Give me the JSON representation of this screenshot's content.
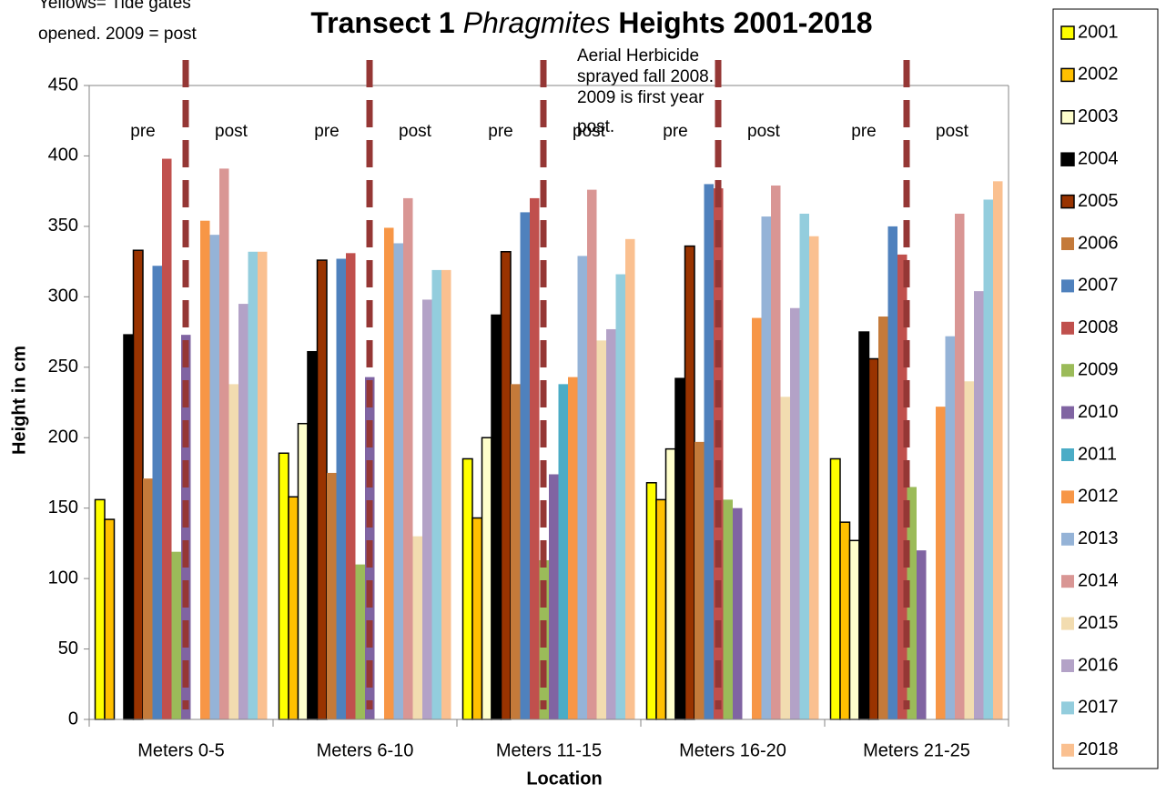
{
  "chart_data": {
    "type": "bar",
    "title": [
      "Transect 1",
      "Phragmites",
      "Heights  2001-2018"
    ],
    "x_label": "Location",
    "y_label": "Height in cm",
    "annotations": [
      [
        "Yellows= Tide gates",
        "opened.  2009 = post"
      ],
      [
        "Aerial Herbicide",
        "sprayed fall 2008.",
        "2009 is first year",
        "post."
      ]
    ],
    "phase_labels": [
      [
        "pre",
        "post"
      ],
      [
        "pre",
        "post"
      ],
      [
        "pre",
        "post"
      ],
      [
        "pre",
        "post"
      ],
      [
        "pre",
        "post"
      ]
    ],
    "categories": [
      "Meters 0-5",
      "Meters  6-10",
      "Meters 11-15",
      "Meters 16-20",
      "Meters 21-25"
    ],
    "ylim": [
      0,
      450
    ],
    "yticks": [
      0,
      50,
      100,
      150,
      200,
      250,
      300,
      350,
      400,
      450
    ],
    "grid": false,
    "legend": "right",
    "series": [
      {
        "name": "2001",
        "color": "#ffff00",
        "edgecolor": "#000000",
        "values": [
          156,
          189,
          185,
          168,
          185
        ]
      },
      {
        "name": "2002",
        "color": "#ffc000",
        "edgecolor": "#000000",
        "values": [
          142,
          158,
          143,
          156,
          140
        ]
      },
      {
        "name": "2003",
        "color": "#ffffcc",
        "edgecolor": "#000000",
        "values": [
          null,
          210,
          200,
          192,
          127
        ]
      },
      {
        "name": "2004",
        "color": "#000000",
        "edgecolor": "#000000",
        "values": [
          273,
          261,
          287,
          242,
          275
        ]
      },
      {
        "name": "2005",
        "color": "#993300",
        "edgecolor": "#000000",
        "values": [
          333,
          326,
          332,
          336,
          256
        ]
      },
      {
        "name": "2006",
        "color": "#c47a3a",
        "values": [
          171,
          175,
          238,
          197,
          286
        ]
      },
      {
        "name": "2007",
        "color": "#4f81bd",
        "values": [
          322,
          327,
          360,
          380,
          350
        ]
      },
      {
        "name": "2008",
        "color": "#c0504d",
        "values": [
          398,
          331,
          370,
          377,
          330
        ]
      },
      {
        "name": "2009",
        "color": "#9bbb59",
        "values": [
          119,
          110,
          113,
          156,
          165
        ]
      },
      {
        "name": "2010",
        "color": "#8064a2",
        "values": [
          273,
          243,
          174,
          150,
          120
        ]
      },
      {
        "name": "2011",
        "color": "#4bacc6",
        "values": [
          null,
          null,
          238,
          null,
          null
        ]
      },
      {
        "name": "2012",
        "color": "#f79646",
        "values": [
          354,
          349,
          243,
          285,
          222
        ]
      },
      {
        "name": "2013",
        "color": "#95b3d7",
        "values": [
          344,
          338,
          329,
          357,
          272
        ]
      },
      {
        "name": "2014",
        "color": "#d99694",
        "values": [
          391,
          370,
          376,
          379,
          359
        ]
      },
      {
        "name": "2015",
        "color": "#f2dcb0",
        "values": [
          238,
          130,
          269,
          229,
          240
        ]
      },
      {
        "name": "2016",
        "color": "#b3a2c7",
        "values": [
          295,
          298,
          277,
          292,
          304
        ]
      },
      {
        "name": "2017",
        "color": "#93cddd",
        "values": [
          332,
          319,
          316,
          359,
          369
        ]
      },
      {
        "name": "2018",
        "color": "#fac090",
        "values": [
          332,
          319,
          341,
          343,
          382
        ]
      }
    ]
  }
}
